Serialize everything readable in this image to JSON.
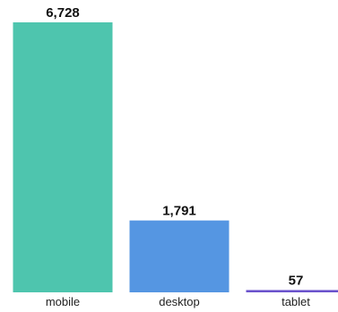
{
  "chart_data": {
    "type": "bar",
    "categories": [
      "mobile",
      "desktop",
      "tablet"
    ],
    "values": [
      6728,
      1791,
      57
    ],
    "value_labels": [
      "6,728",
      "1,791",
      "57"
    ],
    "colors": [
      "#4ec5ae",
      "#5596e2",
      "#6a52cc"
    ],
    "ylim": [
      0,
      6728
    ],
    "grid": false,
    "legend": "none"
  }
}
